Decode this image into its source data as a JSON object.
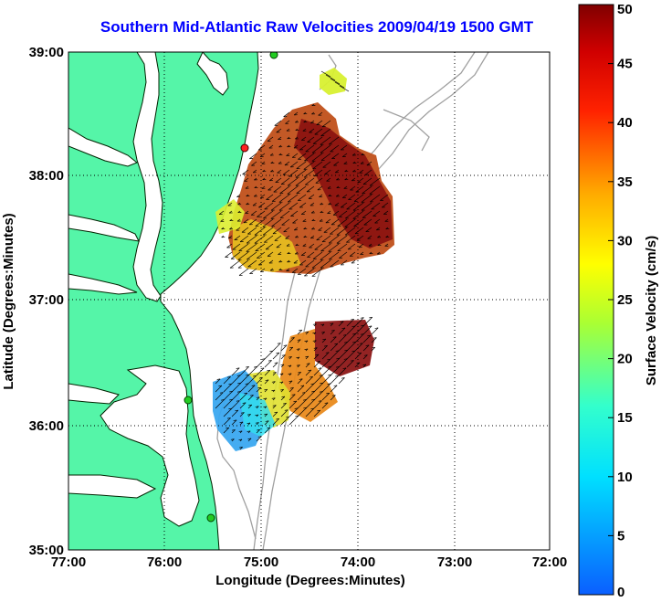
{
  "title": "Southern Mid-Atlantic Raw Velocities 2009/04/19 1500 GMT",
  "x_axis": {
    "label": "Longitude (Degrees:Minutes)",
    "ticks": [
      "77:00",
      "76:00",
      "75:00",
      "74:00",
      "73:00",
      "72:00"
    ]
  },
  "y_axis": {
    "label": "Latitude (Degrees:Minutes)",
    "ticks": [
      "39:00",
      "38:00",
      "37:00",
      "36:00",
      "35:00"
    ]
  },
  "colorbar": {
    "label": "Surface Velocity (cm/s)",
    "ticks": [
      "0",
      "5",
      "10",
      "15",
      "20",
      "25",
      "30",
      "35",
      "40",
      "45",
      "50"
    ],
    "min": 0,
    "max": 50
  },
  "colors": {
    "land": "#55f5a8",
    "ocean": "#ffffff",
    "bathymetry": "#a0a0a0",
    "title": "#0000ff",
    "station": "#22cc22",
    "station_alt": "#ff2222"
  }
}
